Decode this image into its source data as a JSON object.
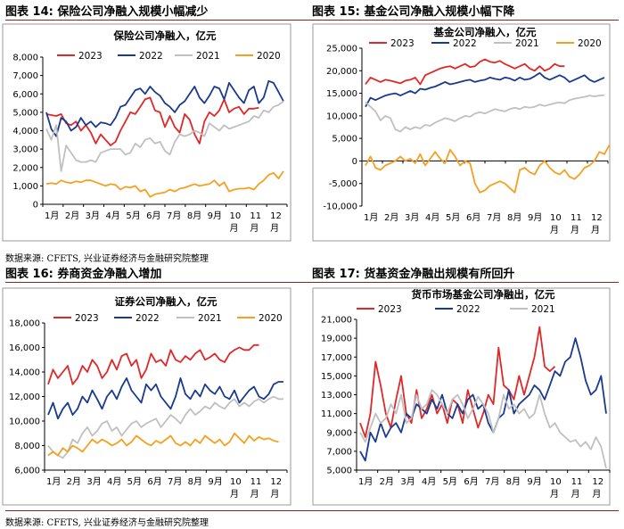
{
  "figures": [
    {
      "label": "图表 14:",
      "title": "保险公司净融入规模小幅减少"
    },
    {
      "label": "图表 15:",
      "title": "基金公司净融入规模小幅下降"
    },
    {
      "label": "图表 16:",
      "title": "券商资金净融入增加"
    },
    {
      "label": "图表 17:",
      "title": "货基资金净融出规模有所回升"
    }
  ],
  "sources": [
    "数据来源: CFETS, 兴业证券经济与金融研究院整理",
    "数据来源: CFETS, 兴业证券经济与金融研究院整理"
  ],
  "colors": {
    "2023": "#e02828",
    "2022": "#1a3a8f",
    "2021": "#c0c0c0",
    "2020": "#f5a020",
    "rule": "#7f2a1f"
  },
  "chart_data": [
    {
      "type": "line",
      "title": "保险公司净融入，亿元",
      "xlabel": "",
      "ylabel": "",
      "ylim": [
        0,
        8000
      ],
      "yticks": [
        0,
        1000,
        2000,
        3000,
        4000,
        5000,
        6000,
        7000,
        8000
      ],
      "ytick_labels": [
        "0",
        "1,000",
        "2,000",
        "3,000",
        "4,000",
        "5,000",
        "6,000",
        "7,000",
        "8,000"
      ],
      "xticks": [
        "1月",
        "2月",
        "3月",
        "4月",
        "5月",
        "6月",
        "7月",
        "8月",
        "9月",
        "10月",
        "11月",
        "12月"
      ],
      "legend": [
        "2023",
        "2022",
        "2021",
        "2020"
      ],
      "series": [
        {
          "name": "2023",
          "values": [
            4900,
            4850,
            4800,
            4900,
            4400,
            4300,
            4500,
            4000,
            4300,
            3900,
            3300,
            3800,
            3500,
            3200,
            3400,
            4000,
            4500,
            5000,
            4900,
            5300,
            5700,
            5800,
            5100,
            5000,
            4200,
            4800,
            4200,
            3900,
            4900,
            4600,
            3800,
            3300,
            4500,
            5000,
            4800,
            5100,
            5700,
            5000,
            5200,
            5300,
            4900,
            5200,
            5200,
            5250
          ]
        },
        {
          "name": "2022",
          "values": [
            5000,
            4100,
            3700,
            4700,
            4500,
            4000,
            4200,
            4700,
            4300,
            4500,
            4200,
            4450,
            4400,
            4300,
            4700,
            5300,
            5400,
            5800,
            6200,
            6300,
            6000,
            6400,
            6100,
            5900,
            5500,
            5300,
            5000,
            5400,
            5600,
            6000,
            6400,
            5800,
            5500,
            5900,
            6400,
            6300,
            5700,
            6600,
            6200,
            5800,
            5500,
            6200,
            6400,
            5500,
            5800,
            6700,
            6600,
            6100,
            5600
          ]
        },
        {
          "name": "2021",
          "values": [
            4100,
            3500,
            4300,
            1800,
            3200,
            2800,
            2400,
            2300,
            2300,
            2400,
            2300,
            2800,
            2900,
            3000,
            3000,
            3000,
            2700,
            2800,
            3300,
            3100,
            3500,
            3600,
            3300,
            3400,
            2900,
            2700,
            3400,
            3800,
            3700,
            3800,
            4000,
            3900,
            3700,
            4400,
            4200,
            4000,
            4300,
            4100,
            4200,
            4300,
            4400,
            4500,
            4800,
            4700,
            5100,
            5000,
            5300,
            5400,
            5600
          ]
        },
        {
          "name": "2020",
          "values": [
            1100,
            1150,
            1100,
            1300,
            1200,
            1150,
            1250,
            1200,
            1300,
            1300,
            1200,
            1100,
            1000,
            1100,
            1050,
            800,
            950,
            900,
            1000,
            700,
            800,
            400,
            550,
            600,
            650,
            800,
            700,
            850,
            900,
            1000,
            1100,
            1000,
            1050,
            1100,
            1300,
            1000,
            1200,
            700,
            800,
            850,
            850,
            900,
            800,
            1100,
            1300,
            1600,
            1700,
            1400,
            1800
          ]
        }
      ]
    },
    {
      "type": "line",
      "title": "基金公司净融入，亿元",
      "xlabel": "",
      "ylabel": "",
      "ylim": [
        -10000,
        25000
      ],
      "yticks": [
        -10000,
        -5000,
        0,
        5000,
        10000,
        15000,
        20000,
        25000
      ],
      "ytick_labels": [
        "-10,000",
        "-5,000",
        "0",
        "5,000",
        "10,000",
        "15,000",
        "20,000",
        "25,000"
      ],
      "xticks": [
        "1月",
        "2月",
        "3月",
        "4月",
        "5月",
        "6月",
        "7月",
        "8月",
        "9月",
        "10月",
        "11月",
        "12月"
      ],
      "legend": [
        "2023",
        "2022",
        "2021",
        "2020"
      ],
      "series": [
        {
          "name": "2023",
          "values": [
            17000,
            18500,
            18000,
            17500,
            18000,
            17800,
            17500,
            17200,
            17800,
            18000,
            18500,
            17000,
            19000,
            19500,
            20000,
            20500,
            20800,
            21000,
            20500,
            21000,
            21500,
            20800,
            21000,
            22000,
            22500,
            22000,
            21800,
            22200,
            21500,
            21000,
            20500,
            21000,
            21500,
            20500,
            20000,
            21000,
            20000,
            20500,
            21500,
            21000,
            21000
          ]
        },
        {
          "name": "2022",
          "values": [
            12000,
            14000,
            13500,
            14000,
            14500,
            14800,
            15000,
            14500,
            15000,
            15500,
            15000,
            16000,
            15800,
            16200,
            16500,
            17000,
            17500,
            17000,
            17200,
            17500,
            17800,
            18000,
            17500,
            17800,
            18000,
            18500,
            18200,
            18000,
            18500,
            18300,
            17800,
            18500,
            18000,
            18200,
            18800,
            19500,
            18500,
            18000,
            18500,
            19000,
            18500,
            17500,
            18000,
            18500,
            19000,
            18000,
            17500,
            18000,
            18500
          ]
        },
        {
          "name": "2021",
          "values": [
            13000,
            12000,
            11000,
            9000,
            10000,
            9500,
            7000,
            6500,
            7500,
            7000,
            7500,
            7200,
            8000,
            7800,
            8500,
            9000,
            9500,
            9200,
            8800,
            9500,
            10000,
            9800,
            10500,
            10800,
            10500,
            11000,
            11500,
            11200,
            11000,
            11500,
            11800,
            11500,
            12000,
            11800,
            12000,
            12500,
            12200,
            12500,
            12800,
            13000,
            12800,
            13500,
            13800,
            14000,
            14200,
            14500,
            14300,
            14500,
            14600
          ]
        },
        {
          "name": "2020",
          "values": [
            -1000,
            1000,
            -1500,
            -2000,
            -1000,
            -500,
            0,
            1000,
            0,
            500,
            -500,
            1500,
            -1000,
            500,
            2000,
            500,
            -500,
            2500,
            1000,
            -1000,
            0,
            -500,
            -5000,
            -7000,
            -6500,
            -5500,
            -5000,
            -4500,
            -5000,
            -6000,
            -7000,
            -2000,
            -1500,
            -2500,
            -3000,
            -1000,
            0,
            -1500,
            -2500,
            -3000,
            -2000,
            -3500,
            -4000,
            -3000,
            -1500,
            -1000,
            0,
            2000,
            1500,
            3500
          ]
        }
      ]
    },
    {
      "type": "line",
      "title": "证券公司净融入，亿元",
      "xlabel": "",
      "ylabel": "",
      "ylim": [
        6000,
        18000
      ],
      "yticks": [
        6000,
        8000,
        10000,
        12000,
        14000,
        16000,
        18000
      ],
      "ytick_labels": [
        "6,000",
        "8,000",
        "10,000",
        "12,000",
        "14,000",
        "16,000",
        "18,000"
      ],
      "xticks": [
        "1月",
        "2月",
        "3月",
        "4月",
        "5月",
        "6月",
        "7月",
        "8月",
        "9月",
        "10月",
        "11月",
        "12月"
      ],
      "legend": [
        "2023",
        "2022",
        "2021",
        "2020"
      ],
      "series": [
        {
          "name": "2023",
          "values": [
            13000,
            14200,
            13500,
            14000,
            14500,
            13000,
            13500,
            14500,
            14000,
            15000,
            14500,
            13500,
            14000,
            15000,
            14200,
            15300,
            15500,
            14500,
            15000,
            13500,
            14200,
            15500,
            14800,
            15000,
            14500,
            15800,
            15000,
            14800,
            15300,
            15000,
            15500,
            15800,
            15000,
            15200,
            15500,
            15000,
            14800,
            15500,
            15800,
            16000,
            15800,
            15800,
            16200,
            16200
          ]
        },
        {
          "name": "2022",
          "values": [
            10500,
            11500,
            10200,
            11000,
            11500,
            10500,
            11000,
            12000,
            11500,
            12500,
            11800,
            11000,
            12000,
            12500,
            11800,
            12800,
            13500,
            12500,
            12000,
            11500,
            13000,
            12500,
            13000,
            12000,
            11500,
            11000,
            12000,
            13500,
            12200,
            11800,
            12500,
            12000,
            13000,
            12500,
            12200,
            12800,
            12000,
            11800,
            12500,
            11500,
            12000,
            12500,
            12800,
            12000,
            11800,
            12200,
            13000,
            13200,
            13200
          ]
        },
        {
          "name": "2021",
          "values": [
            8000,
            7500,
            7200,
            7000,
            7500,
            8500,
            8200,
            9000,
            9500,
            8800,
            9200,
            9800,
            10000,
            9200,
            9500,
            8800,
            9300,
            9800,
            10000,
            9500,
            9800,
            10000,
            10200,
            9500,
            10000,
            10500,
            10200,
            9800,
            10500,
            11000,
            10500,
            10800,
            11200,
            11000,
            11500,
            11200,
            11000,
            11500,
            11800,
            11200,
            11500,
            11200,
            11600,
            11800,
            11500,
            11800,
            12000,
            11800,
            11800
          ]
        },
        {
          "name": "2020",
          "values": [
            7200,
            7500,
            7200,
            7800,
            7500,
            8000,
            7800,
            7500,
            8000,
            8500,
            8200,
            8500,
            8300,
            8000,
            8200,
            8500,
            8000,
            8300,
            8800,
            8500,
            8200,
            8000,
            8400,
            8200,
            8500,
            8800,
            8200,
            8000,
            8300,
            8000,
            8500,
            8200,
            8800,
            8500,
            8200,
            8500,
            8000,
            8300,
            9000,
            8600,
            8200,
            8800,
            8400,
            8700,
            8500,
            8600,
            8400,
            8300
          ]
        }
      ]
    },
    {
      "type": "line",
      "title": "货币市场基金公司净融出，亿元",
      "xlabel": "",
      "ylabel": "",
      "ylim": [
        5000,
        21000
      ],
      "yticks": [
        5000,
        7000,
        9000,
        11000,
        13000,
        15000,
        17000,
        19000,
        21000
      ],
      "ytick_labels": [
        "5,000",
        "7,000",
        "9,000",
        "11,000",
        "13,000",
        "15,000",
        "17,000",
        "19,000",
        "21,000"
      ],
      "xticks": [
        "1月",
        "2月",
        "3月",
        "4月",
        "5月",
        "6月",
        "7月",
        "8月",
        "9月",
        "10月",
        "11月",
        "12月"
      ],
      "legend": [
        "2023",
        "2022",
        "2021"
      ],
      "series": [
        {
          "name": "2023",
          "values": [
            10000,
            8500,
            11000,
            16500,
            14000,
            11000,
            9500,
            12500,
            15000,
            11000,
            10000,
            13500,
            10500,
            11500,
            13000,
            11000,
            12000,
            10000,
            12500,
            12000,
            10000,
            13500,
            11500,
            9500,
            11000,
            13000,
            12000,
            18000,
            14000,
            13500,
            12500,
            15000,
            13000,
            15000,
            17000,
            20200,
            16000,
            15500,
            16000
          ]
        },
        {
          "name": "2022",
          "values": [
            7000,
            6000,
            9000,
            8000,
            10000,
            8500,
            9500,
            10000,
            9000,
            11000,
            10500,
            12000,
            11500,
            11000,
            12500,
            11500,
            13000,
            11000,
            10500,
            12000,
            11000,
            12500,
            13000,
            11500,
            12000,
            10000,
            9000,
            10500,
            11000,
            13500,
            11000,
            12000,
            12500,
            13000,
            14000,
            13500,
            12500,
            14000,
            15500,
            15000,
            16500,
            17000,
            19000,
            17000,
            14500,
            13000,
            13500,
            15000,
            11000
          ]
        },
        {
          "name": "2021",
          "values": [
            9000,
            8000,
            9500,
            11000,
            10000,
            10500,
            12000,
            11000,
            13000,
            10000,
            10500,
            13000,
            11500,
            12000,
            13500,
            13000,
            12000,
            11000,
            12500,
            13000,
            12000,
            10500,
            11500,
            12800,
            12000,
            11000,
            9000,
            10500,
            13000,
            11500,
            12000,
            11000,
            11500,
            10500,
            11000,
            13000,
            11000,
            9500,
            10000,
            9000,
            8500,
            8000,
            8200,
            7500,
            8000,
            7200,
            8500,
            7500,
            5200
          ]
        }
      ]
    }
  ]
}
